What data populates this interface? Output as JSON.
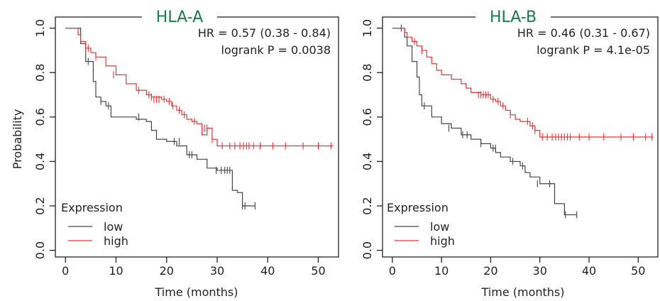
{
  "chart_data": [
    {
      "type": "line",
      "title": "HLA-A",
      "title_color": "#1a7a4a",
      "xlabel": "Time (months)",
      "ylabel": "Probability",
      "xlim": [
        -2,
        54
      ],
      "ylim": [
        -0.03,
        1.05
      ],
      "xticks": [
        "0",
        "10",
        "20",
        "30",
        "40",
        "50"
      ],
      "yticks": [
        "0.0",
        "0.2",
        "0.4",
        "0.6",
        "0.8",
        "1.0"
      ],
      "annotations": [
        "HR = 0.57 (0.38 - 0.84)",
        "logrank P = 0.0038"
      ],
      "legend": {
        "title": "Expression",
        "placement": "bottom-left",
        "entries": [
          "low",
          "high"
        ]
      },
      "series": [
        {
          "name": "low",
          "color": "#444444",
          "x": [
            0,
            1.5,
            3,
            4,
            5,
            5.5,
            6,
            7,
            8,
            9,
            12,
            14,
            16,
            17,
            18,
            20,
            22,
            24,
            26,
            28,
            30,
            32,
            33,
            34,
            35,
            37.5
          ],
          "y": [
            1.0,
            1.0,
            0.93,
            0.85,
            0.85,
            0.76,
            0.69,
            0.67,
            0.65,
            0.6,
            0.6,
            0.59,
            0.58,
            0.54,
            0.5,
            0.49,
            0.47,
            0.43,
            0.41,
            0.37,
            0.36,
            0.36,
            0.27,
            0.26,
            0.2,
            0.2
          ],
          "censors_x": [
            4.5,
            7,
            8.5,
            14.5,
            21.5,
            22.5,
            24.5,
            25,
            29.8,
            30.8,
            31.5,
            32,
            32.5,
            35,
            35.5,
            37.5
          ],
          "censors_y": [
            0.85,
            0.67,
            0.65,
            0.6,
            0.49,
            0.49,
            0.43,
            0.43,
            0.36,
            0.36,
            0.36,
            0.36,
            0.36,
            0.2,
            0.2,
            0.2
          ]
        },
        {
          "name": "high",
          "color": "#ee3333",
          "x": [
            0,
            1.5,
            2.5,
            3,
            4,
            5,
            6,
            8,
            10,
            12,
            14,
            16,
            17,
            18,
            19,
            20,
            21,
            22,
            23,
            24,
            25,
            26,
            27,
            28,
            29,
            30,
            53
          ],
          "y": [
            1.0,
            1.0,
            0.97,
            0.94,
            0.91,
            0.89,
            0.87,
            0.83,
            0.79,
            0.75,
            0.72,
            0.7,
            0.69,
            0.69,
            0.68,
            0.67,
            0.65,
            0.63,
            0.61,
            0.59,
            0.58,
            0.57,
            0.52,
            0.55,
            0.5,
            0.47,
            0.47
          ],
          "censors_x": [
            4.5,
            6,
            9.5,
            14.5,
            16.5,
            17,
            17.5,
            18,
            18.5,
            19.5,
            20.5,
            21.2,
            22.5,
            23.5,
            25.5,
            27,
            27.5,
            28,
            29,
            31,
            32.5,
            33.5,
            34.5,
            35.2,
            35.8,
            36.3,
            37.2,
            38.5,
            41,
            43.5,
            47,
            50,
            52.5
          ],
          "censors_y": [
            0.91,
            0.87,
            0.79,
            0.72,
            0.7,
            0.69,
            0.68,
            0.68,
            0.68,
            0.68,
            0.67,
            0.65,
            0.63,
            0.61,
            0.58,
            0.54,
            0.55,
            0.55,
            0.5,
            0.47,
            0.47,
            0.47,
            0.47,
            0.47,
            0.47,
            0.47,
            0.47,
            0.47,
            0.47,
            0.47,
            0.47,
            0.47,
            0.47
          ]
        }
      ]
    },
    {
      "type": "line",
      "title": "HLA-B",
      "title_color": "#1a7a4a",
      "xlabel": "Time (months)",
      "ylabel": "",
      "xlim": [
        -2,
        54
      ],
      "ylim": [
        -0.03,
        1.05
      ],
      "xticks": [
        "0",
        "10",
        "20",
        "30",
        "40",
        "50"
      ],
      "yticks": [
        "0.0",
        "0.2",
        "0.4",
        "0.6",
        "0.8",
        "1.0"
      ],
      "annotations": [
        "HR = 0.46 (0.31 - 0.67)",
        "logrank P = 4.1e-05"
      ],
      "legend": {
        "title": "Expression",
        "placement": "bottom-left",
        "entries": [
          "low",
          "high"
        ]
      },
      "series": [
        {
          "name": "low",
          "color": "#444444",
          "x": [
            0,
            1.5,
            2.5,
            3,
            4,
            5,
            5.5,
            6,
            8,
            10,
            12,
            14,
            16,
            18,
            20,
            21,
            22,
            24,
            26,
            27,
            28,
            30,
            32,
            33,
            35,
            37.5
          ],
          "y": [
            1.0,
            1.0,
            0.96,
            0.92,
            0.85,
            0.78,
            0.7,
            0.65,
            0.6,
            0.57,
            0.55,
            0.52,
            0.5,
            0.48,
            0.46,
            0.44,
            0.42,
            0.4,
            0.38,
            0.35,
            0.33,
            0.3,
            0.3,
            0.21,
            0.16,
            0.16
          ],
          "censors_x": [
            1.8,
            6.5,
            11.5,
            14.3,
            15.2,
            18,
            20.5,
            21,
            24.5,
            26.5,
            29.5,
            32,
            35.2,
            37.5
          ],
          "censors_y": [
            1.0,
            0.65,
            0.55,
            0.52,
            0.52,
            0.48,
            0.46,
            0.46,
            0.4,
            0.38,
            0.3,
            0.3,
            0.16,
            0.16
          ]
        },
        {
          "name": "high",
          "color": "#ee3333",
          "x": [
            0,
            1.5,
            2.5,
            3,
            4,
            5,
            6,
            7,
            8,
            9,
            10,
            12,
            14,
            15,
            16,
            18,
            20,
            21,
            22,
            23,
            24,
            25,
            26,
            27,
            28,
            29,
            30,
            53
          ],
          "y": [
            1.0,
            1.0,
            0.98,
            0.96,
            0.94,
            0.92,
            0.9,
            0.87,
            0.84,
            0.81,
            0.79,
            0.77,
            0.75,
            0.73,
            0.71,
            0.7,
            0.68,
            0.67,
            0.65,
            0.63,
            0.61,
            0.59,
            0.58,
            0.58,
            0.56,
            0.54,
            0.51,
            0.51
          ],
          "censors_x": [
            4.5,
            6,
            17.5,
            18,
            18.5,
            19,
            19.5,
            20.5,
            21.5,
            22.5,
            24,
            27.5,
            28.5,
            29,
            30.5,
            31.5,
            32.5,
            33.2,
            33.8,
            34.4,
            35,
            35.6,
            36.2,
            38,
            40,
            43,
            46.5,
            49,
            51.5,
            52.8
          ],
          "censors_y": [
            0.94,
            0.9,
            0.7,
            0.7,
            0.7,
            0.7,
            0.7,
            0.68,
            0.67,
            0.65,
            0.61,
            0.58,
            0.56,
            0.54,
            0.51,
            0.51,
            0.51,
            0.51,
            0.51,
            0.51,
            0.51,
            0.51,
            0.51,
            0.51,
            0.51,
            0.51,
            0.51,
            0.51,
            0.51,
            0.51
          ]
        }
      ]
    }
  ]
}
